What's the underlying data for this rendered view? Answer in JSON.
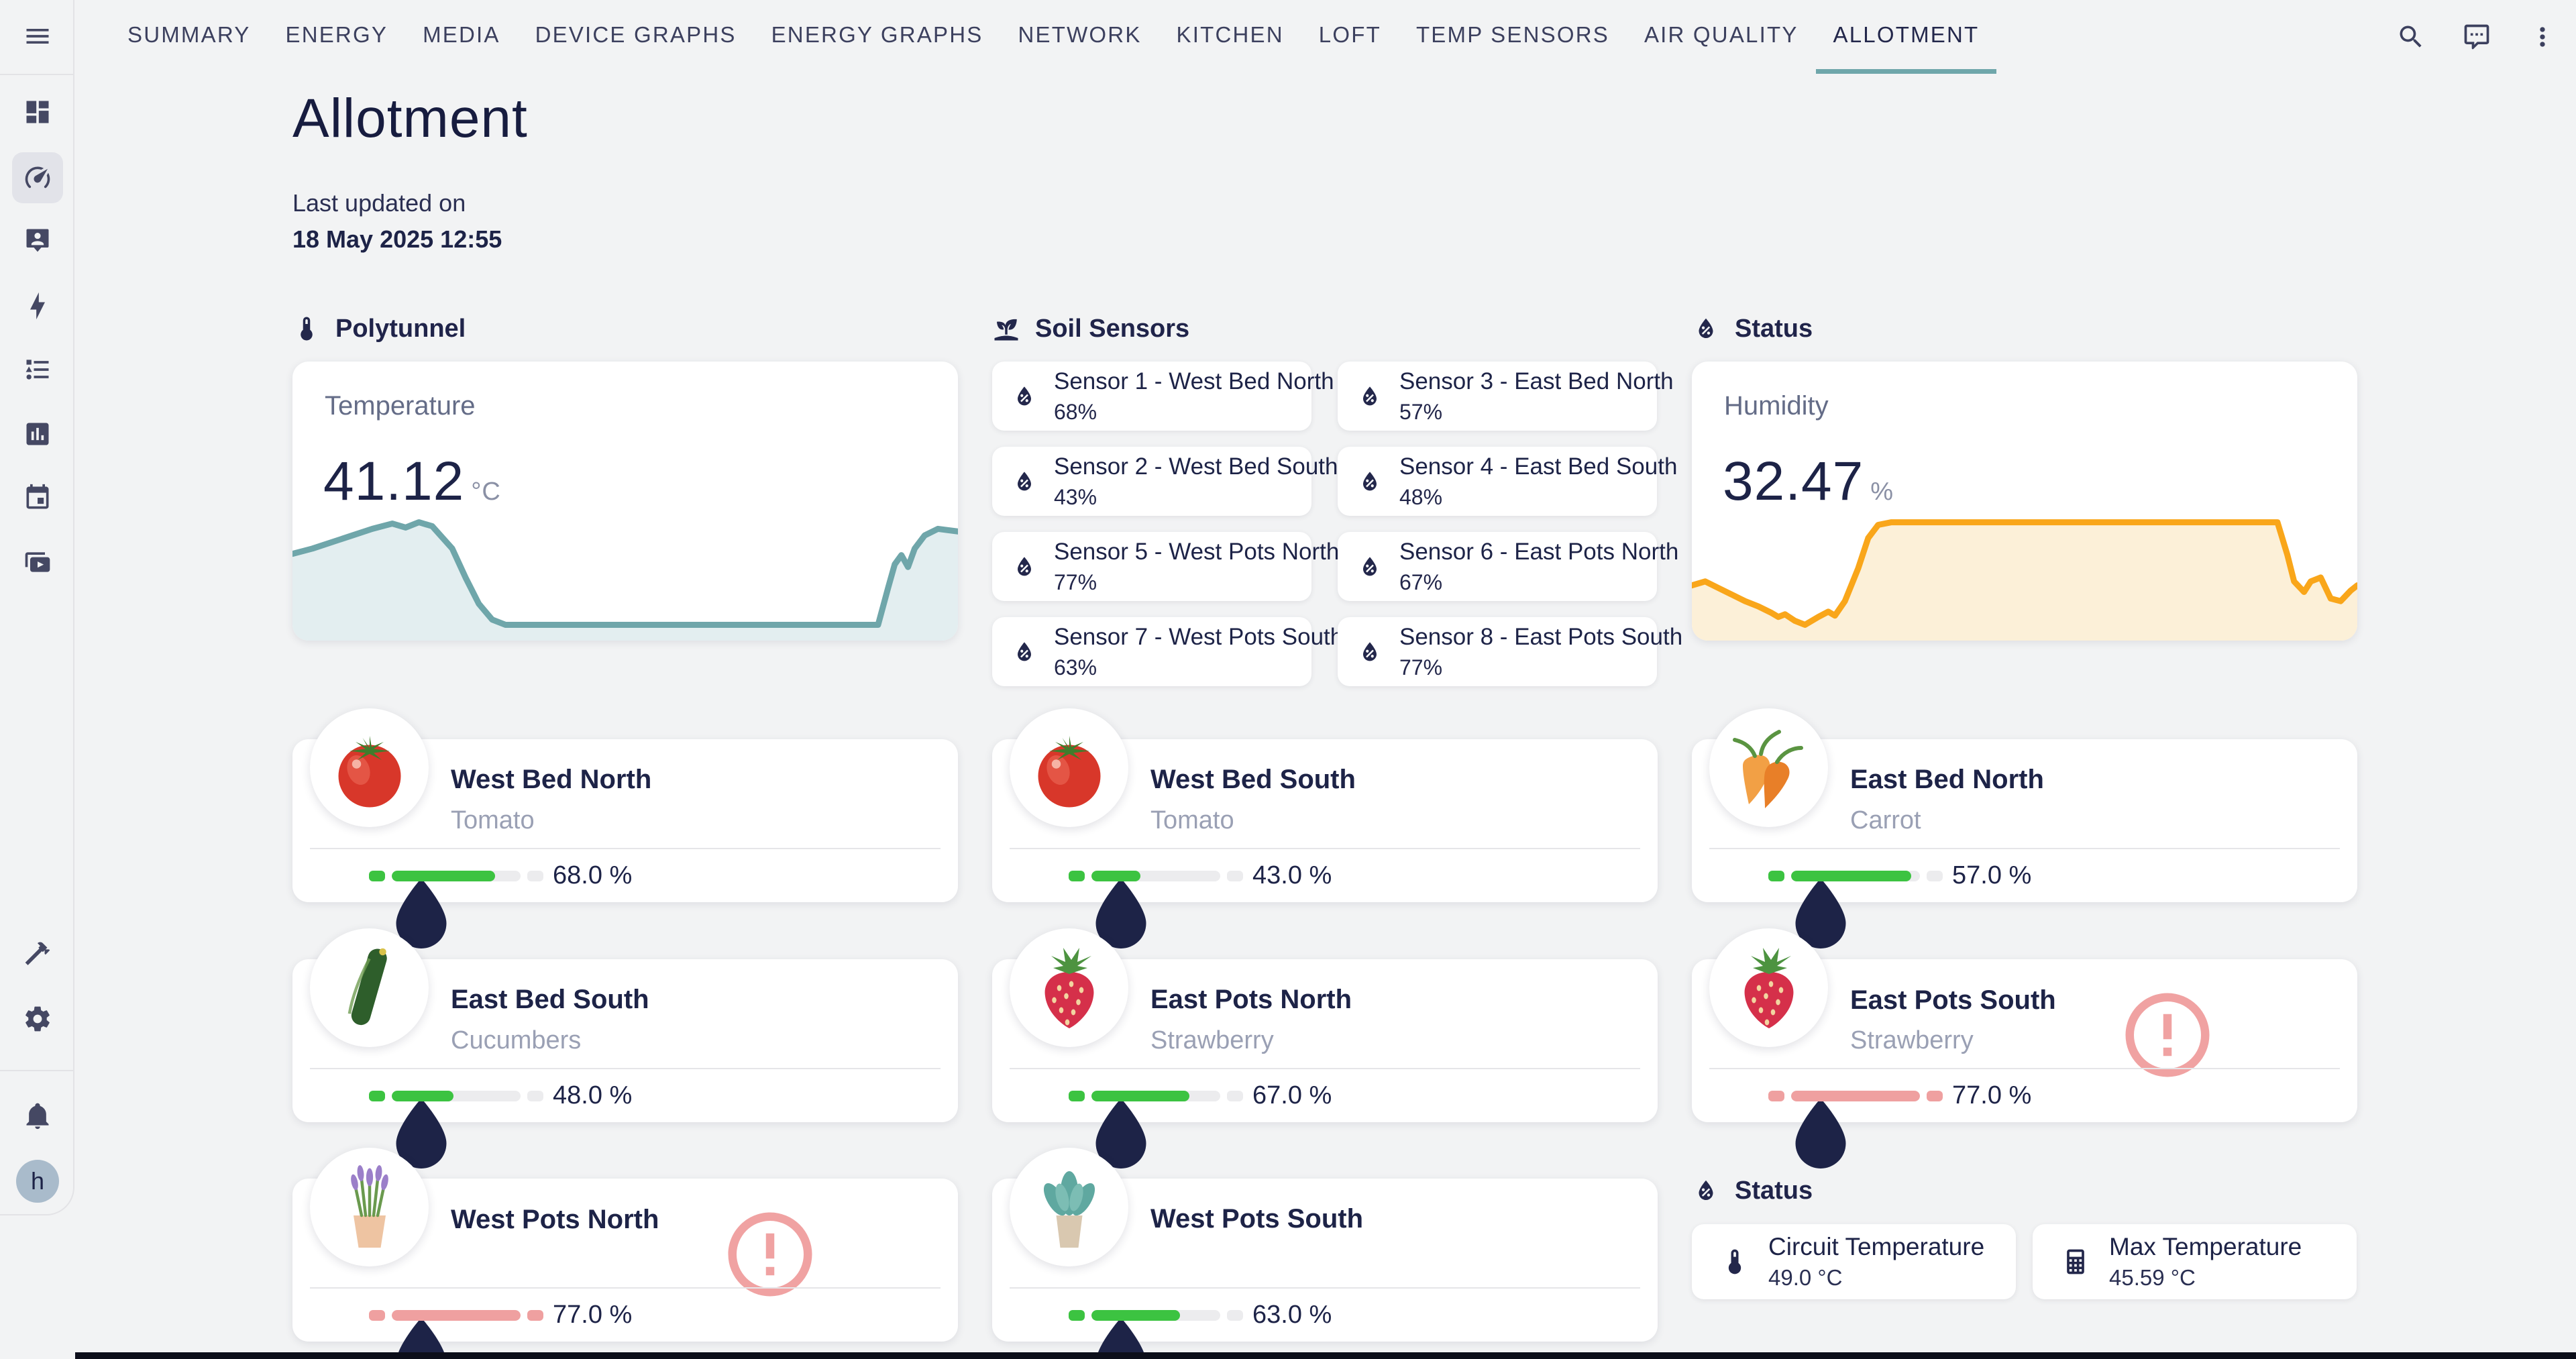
{
  "nav": {
    "tabs": [
      "SUMMARY",
      "ENERGY",
      "MEDIA",
      "DEVICE GRAPHS",
      "ENERGY GRAPHS",
      "NETWORK",
      "KITCHEN",
      "LOFT",
      "TEMP SENSORS",
      "AIR QUALITY",
      "ALLOTMENT"
    ],
    "active_tab": "ALLOTMENT"
  },
  "topbar_icons": [
    "search",
    "assist-chat",
    "overflow-menu"
  ],
  "sidebar": {
    "items": [
      "menu",
      "dashboard",
      "gauge",
      "person-badge",
      "lightning-bolt",
      "todo-list",
      "chart-box",
      "calendar",
      "media-play",
      "developer-hammer",
      "settings-gear",
      "notifications-bell"
    ],
    "active_item": "gauge",
    "avatar_letter": "h"
  },
  "header": {
    "title": "Allotment",
    "updated_label": "Last updated on",
    "updated_value": "18 May 2025 12:55"
  },
  "colors": {
    "accent_teal": "#6fa6aa",
    "accent_orange": "#f9a61a",
    "ok_green": "#3cc341",
    "warn_pink": "#efa0a0",
    "navy_text": "#1d2347",
    "track_gray": "#ececee"
  },
  "polytunnel": {
    "section_title": "Polytunnel",
    "card_label": "Temperature",
    "value": "41.12",
    "unit": "°C"
  },
  "soil": {
    "section_title": "Soil Sensors",
    "sensors": [
      {
        "name": "Sensor 1 - West Bed North",
        "value": "68%"
      },
      {
        "name": "Sensor 3 - East Bed North",
        "value": "57%"
      },
      {
        "name": "Sensor 2 - West Bed South",
        "value": "43%"
      },
      {
        "name": "Sensor 4 - East Bed South",
        "value": "48%"
      },
      {
        "name": "Sensor 5 - West Pots North",
        "value": "77%"
      },
      {
        "name": "Sensor 6 - East Pots North",
        "value": "67%"
      },
      {
        "name": "Sensor 7 - West Pots South",
        "value": "63%"
      },
      {
        "name": "Sensor 8 - East Pots South",
        "value": "77%"
      }
    ]
  },
  "status_top": {
    "section_title": "Status",
    "card_label": "Humidity",
    "value": "32.47",
    "unit": "%"
  },
  "plants": [
    {
      "name": "West Bed North",
      "species": "Tomato",
      "moisture": "68.0 %",
      "fill_pct": 80,
      "color": "#3cc341",
      "end_color": "#ececee",
      "warning": false,
      "icon": "#plant-tomato"
    },
    {
      "name": "West Bed South",
      "species": "Tomato",
      "moisture": "43.0 %",
      "fill_pct": 38,
      "color": "#3cc341",
      "end_color": "#ececee",
      "warning": false,
      "icon": "#plant-tomato"
    },
    {
      "name": "East Bed North",
      "species": "Carrot",
      "moisture": "57.0 %",
      "fill_pct": 93,
      "color": "#3cc341",
      "end_color": "#ececee",
      "warning": false,
      "icon": "#plant-carrot"
    },
    {
      "name": "East Bed South",
      "species": "Cucumbers",
      "moisture": "48.0 %",
      "fill_pct": 48,
      "color": "#3cc341",
      "end_color": "#ececee",
      "warning": false,
      "icon": "#plant-cucumber"
    },
    {
      "name": "East Pots North",
      "species": "Strawberry",
      "moisture": "67.0 %",
      "fill_pct": 76,
      "color": "#3cc341",
      "end_color": "#ececee",
      "warning": false,
      "icon": "#plant-strawberry"
    },
    {
      "name": "East Pots South",
      "species": "Strawberry",
      "moisture": "77.0 %",
      "fill_pct": 100,
      "color": "#efa0a0",
      "end_color": "#efa0a0",
      "warning": true,
      "icon": "#plant-strawberry"
    },
    {
      "name": "West Pots North",
      "species": "",
      "moisture": "77.0 %",
      "fill_pct": 100,
      "color": "#efa0a0",
      "end_color": "#efa0a0",
      "warning": true,
      "icon": "#plant-lavender"
    },
    {
      "name": "West Pots South",
      "species": "",
      "moisture": "63.0 %",
      "fill_pct": 69,
      "color": "#3cc341",
      "end_color": "#ececee",
      "warning": false,
      "icon": "#plant-succulent"
    }
  ],
  "status_bottom": {
    "section_title": "Status",
    "cards": [
      {
        "label": "Circuit Temperature",
        "value": "49.0 °C",
        "icon": "thermometer"
      },
      {
        "label": "Max Temperature",
        "value": "45.59 °C",
        "icon": "calculator"
      }
    ]
  },
  "chart_data": [
    {
      "type": "area",
      "entity": "Polytunnel Temperature",
      "unit": "°C",
      "current_value": 41.12,
      "line_color": "#6fa6aa",
      "fill_color": "#e3eef0",
      "axes": "none (sparkline, unlabeled time axis)",
      "points": [
        [
          0,
          34
        ],
        [
          3,
          30
        ],
        [
          6,
          25
        ],
        [
          9,
          20
        ],
        [
          12,
          15
        ],
        [
          15,
          11
        ],
        [
          17,
          14
        ],
        [
          19,
          10
        ],
        [
          21,
          13
        ],
        [
          24,
          30
        ],
        [
          26,
          52
        ],
        [
          28,
          72
        ],
        [
          30,
          84
        ],
        [
          32,
          88
        ],
        [
          60,
          88
        ],
        [
          88,
          88
        ],
        [
          89.5,
          60
        ],
        [
          90.5,
          42
        ],
        [
          91.5,
          35
        ],
        [
          92.5,
          44
        ],
        [
          93.5,
          30
        ],
        [
          95,
          20
        ],
        [
          97,
          15
        ],
        [
          100,
          17
        ]
      ]
    },
    {
      "type": "area",
      "entity": "Humidity",
      "unit": "%",
      "current_value": 32.47,
      "line_color": "#f9a61a",
      "fill_color": "#fcf0d8",
      "axes": "none (sparkline, unlabeled time axis)",
      "points": [
        [
          0,
          58
        ],
        [
          2,
          55
        ],
        [
          4,
          60
        ],
        [
          6,
          65
        ],
        [
          8,
          70
        ],
        [
          10,
          74
        ],
        [
          12,
          79
        ],
        [
          13,
          82
        ],
        [
          14,
          80
        ],
        [
          15.5,
          85
        ],
        [
          17,
          88
        ],
        [
          19,
          82
        ],
        [
          20.5,
          78
        ],
        [
          21.5,
          81
        ],
        [
          23,
          70
        ],
        [
          25,
          45
        ],
        [
          26.5,
          22
        ],
        [
          28,
          12
        ],
        [
          30,
          10
        ],
        [
          60,
          10
        ],
        [
          88,
          10
        ],
        [
          89.5,
          35
        ],
        [
          90.5,
          55
        ],
        [
          92,
          63
        ],
        [
          93,
          55
        ],
        [
          94.5,
          52
        ],
        [
          96,
          68
        ],
        [
          97.5,
          70
        ],
        [
          99,
          62
        ],
        [
          100,
          58
        ]
      ]
    }
  ]
}
